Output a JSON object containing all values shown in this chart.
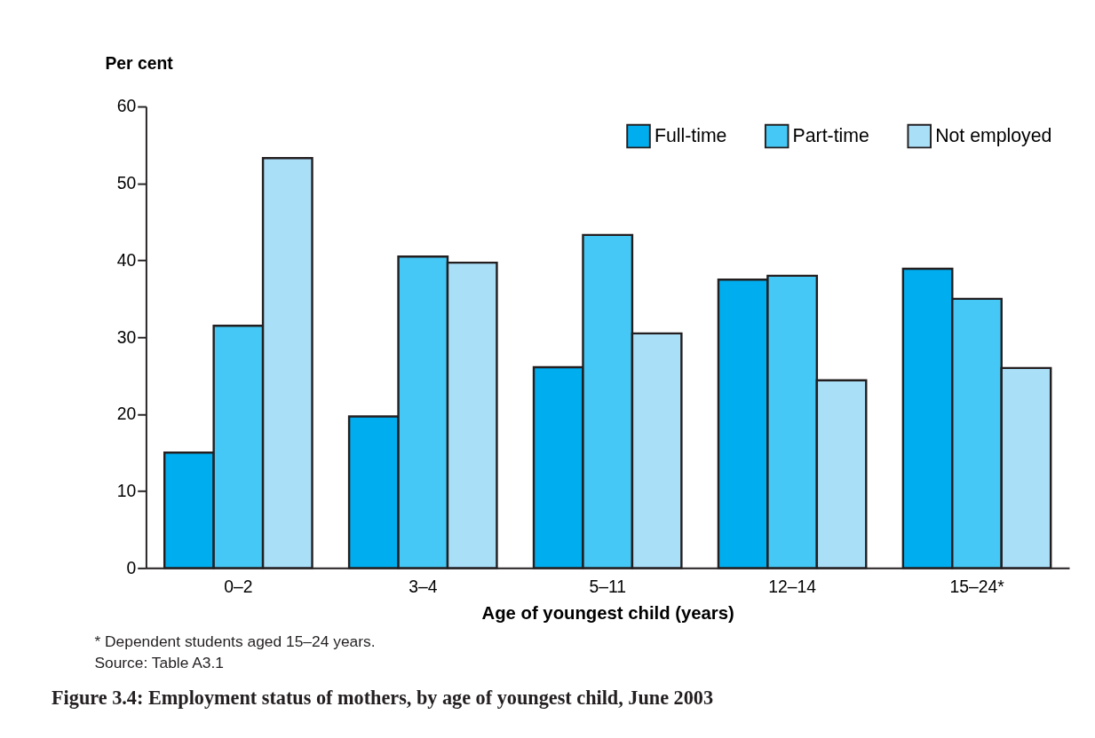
{
  "chart_data": {
    "type": "bar",
    "title": "Figure 3.4: Employment status of mothers, by age of youngest child, June 2003",
    "xlabel": "Age of youngest child (years)",
    "ylabel": "Per cent",
    "categories": [
      "0–2",
      "3–4",
      "5–11",
      "12–14",
      "15–24*"
    ],
    "series": [
      {
        "name": "Full-time",
        "color": "#00aeef",
        "values": [
          15.0,
          19.7,
          26.1,
          37.5,
          38.9
        ]
      },
      {
        "name": "Part-time",
        "color": "#45c8f5",
        "values": [
          31.5,
          40.5,
          43.3,
          38.0,
          35.0
        ]
      },
      {
        "name": "Not employed",
        "color": "#aadff8",
        "values": [
          53.3,
          39.7,
          30.5,
          24.4,
          26.0
        ]
      }
    ],
    "ylim": [
      0,
      60
    ],
    "yticks": [
      0,
      10,
      20,
      30,
      40,
      50,
      60
    ],
    "grid": false,
    "legend": "top right",
    "annotations": [
      "* Dependent students aged 15–24 years.",
      "Source: Table A3.1"
    ]
  }
}
